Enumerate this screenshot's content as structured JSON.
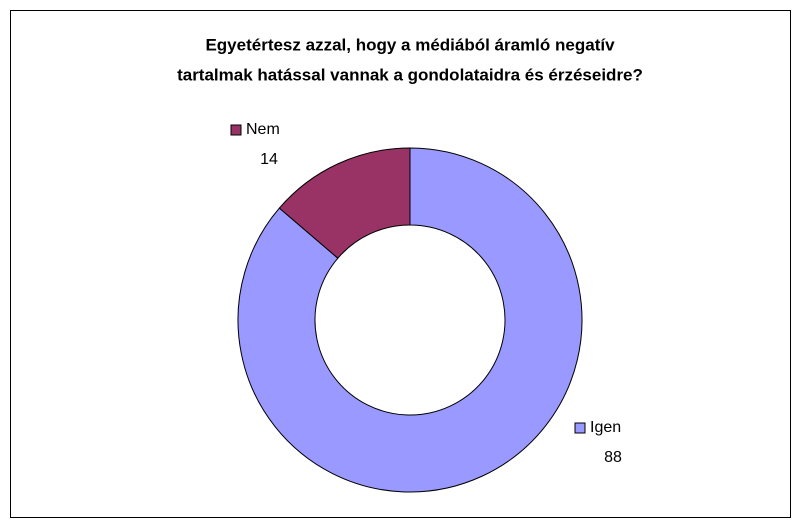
{
  "chart_data": {
    "type": "donut",
    "title": [
      "Egyetértesz azzal, hogy a médiából áramló negatív",
      "tartalmak hatással vannak a gondolataidra és érzéseidre?"
    ],
    "categories": [
      "Igen",
      "Nem"
    ],
    "values": [
      88,
      14
    ],
    "colors": [
      "#9999ff",
      "#993366"
    ]
  }
}
